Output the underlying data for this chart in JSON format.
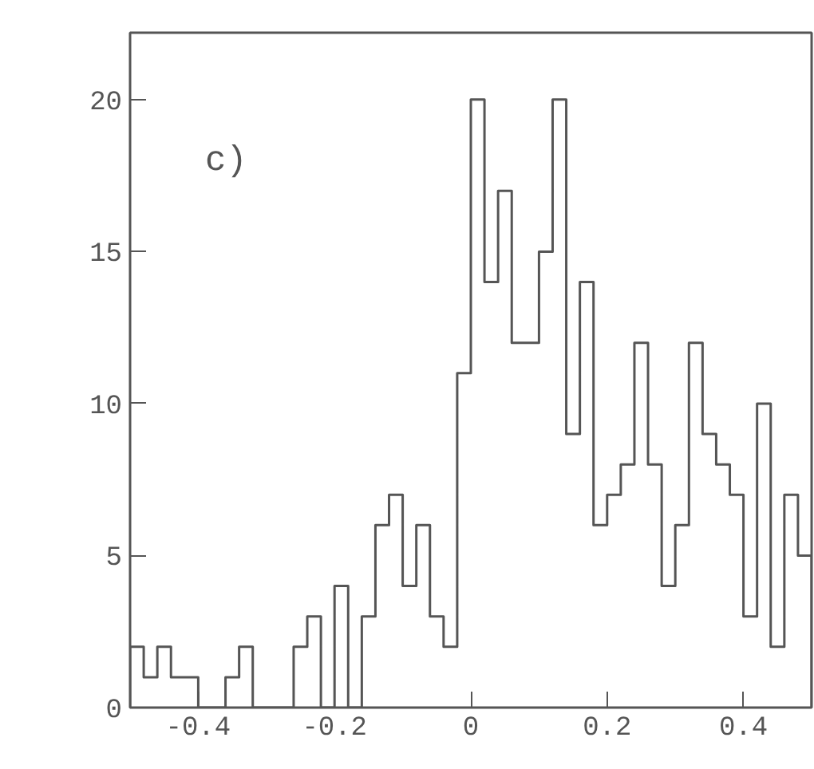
{
  "chart_data": {
    "type": "histogram",
    "bins": [
      -0.5,
      -0.48,
      -0.46,
      -0.44,
      -0.42,
      -0.4,
      -0.38,
      -0.36,
      -0.34,
      -0.32,
      -0.3,
      -0.28,
      -0.26,
      -0.24,
      -0.22,
      -0.2,
      -0.18,
      -0.16,
      -0.14,
      -0.12,
      -0.1,
      -0.08,
      -0.06,
      -0.04,
      -0.02,
      0,
      0.02,
      0.04,
      0.06,
      0.08,
      0.1,
      0.12,
      0.14,
      0.16,
      0.18,
      0.2,
      0.22,
      0.24,
      0.26,
      0.28,
      0.3,
      0.32,
      0.34,
      0.36,
      0.38,
      0.4,
      0.42,
      0.44,
      0.46,
      0.48,
      0.5
    ],
    "values": [
      2,
      1,
      2,
      1,
      1,
      0,
      0,
      1,
      2,
      0,
      0,
      0,
      2,
      3,
      0,
      4,
      0,
      3,
      6,
      7,
      4,
      6,
      3,
      2,
      11,
      20,
      14,
      17,
      12,
      12,
      15,
      20,
      9,
      14,
      6,
      7,
      8,
      12,
      8,
      4,
      6,
      12,
      9,
      8,
      7,
      3,
      10,
      2,
      7,
      5
    ],
    "color": "#555555",
    "xlim": [
      -0.5,
      0.5
    ],
    "ylim": [
      0,
      22.2
    ],
    "xticks": [
      -0.4,
      -0.2,
      0,
      0.2,
      0.4
    ],
    "yticks": [
      0,
      5,
      10,
      15,
      20
    ],
    "grid": false,
    "annotations": [
      "c)"
    ]
  }
}
